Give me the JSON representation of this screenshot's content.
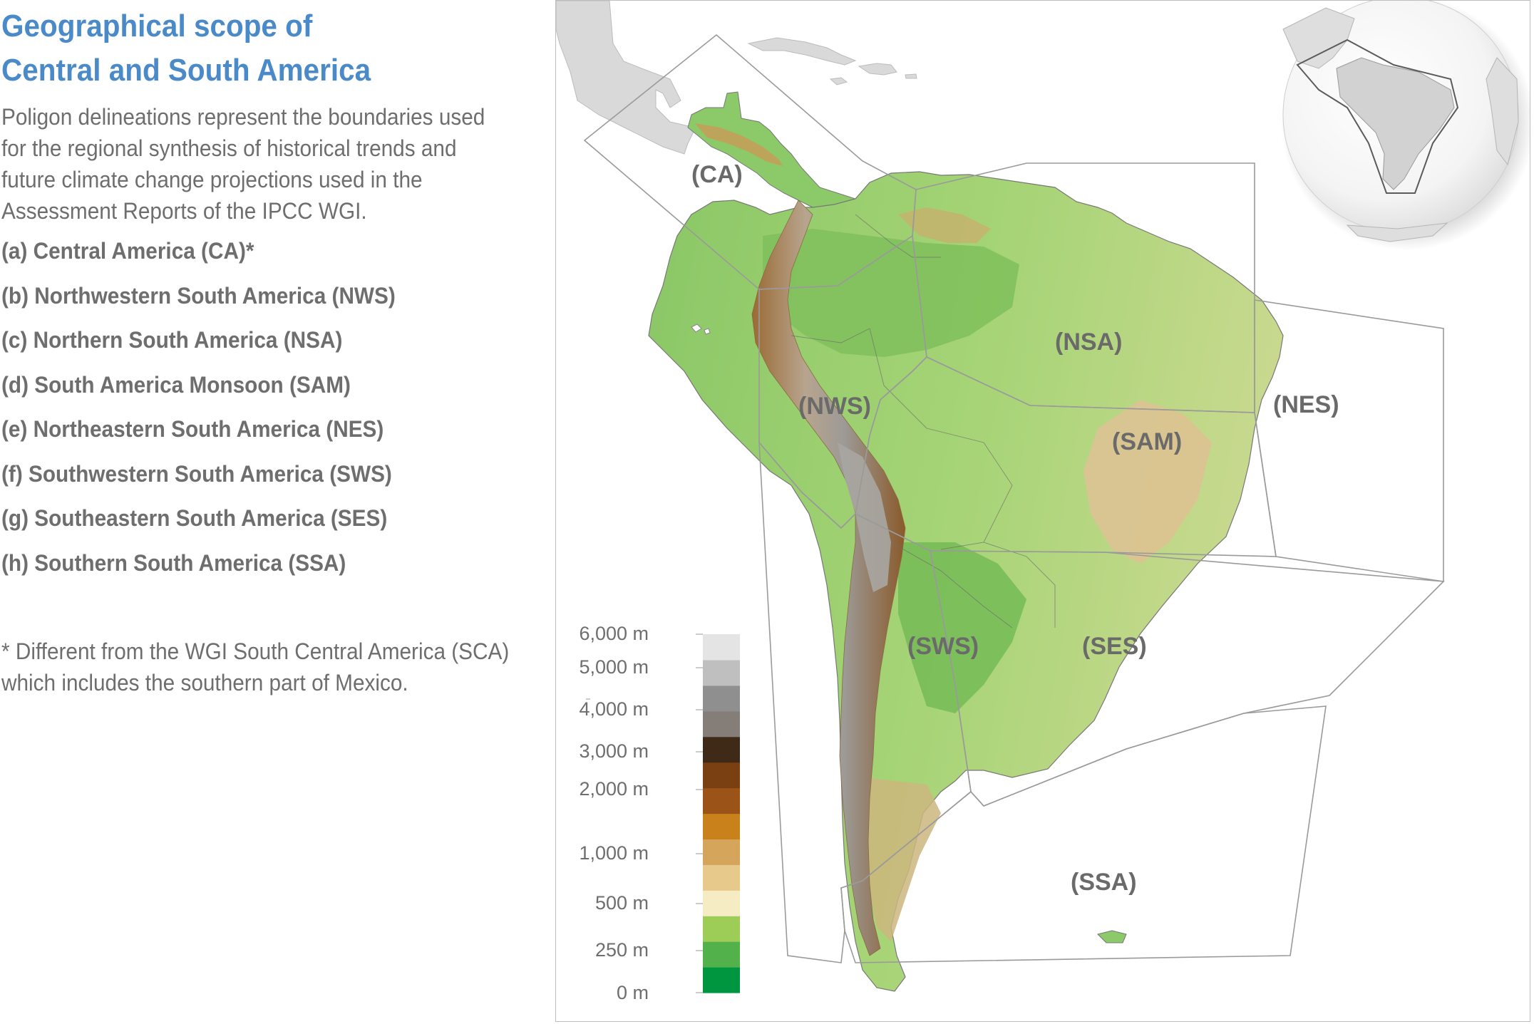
{
  "title": {
    "line1": "Geographical scope of",
    "line2": "Central and South America"
  },
  "description": {
    "line1": "Poligon delineations represent the boundaries used",
    "line2": "for the regional synthesis of historical trends and",
    "line3": "future climate change projections used in the",
    "line4": "Assessment Reports of the IPCC WGI."
  },
  "regions": [
    "(a) Central America (CA)*",
    "(b) Northwestern South America (NWS)",
    "(c) Northern South America (NSA)",
    "(d) South America Monsoon (SAM)",
    "(e) Northeastern South America (NES)",
    "(f) Southwestern South America (SWS)",
    "(g) Southeastern South America (SES)",
    "(h) Southern South America (SSA)"
  ],
  "footnote": {
    "line1": "* Different from the WGI South Central America (SCA)",
    "line2": "which includes the southern part of Mexico."
  },
  "map": {
    "region_labels": {
      "ca": "(CA)",
      "nsa": "(NSA)",
      "nws": "(NWS)",
      "nes": "(NES)",
      "sam": "(SAM)",
      "sws": "(SWS)",
      "ses": "(SES)",
      "ssa": "(SSA)"
    },
    "colors": {
      "lowland_green": "#1e9a4a",
      "plains_green": "#9fcf6a",
      "upland_tan": "#e3c58c",
      "highland_brown": "#8a5a2a",
      "peak_grey": "#a8a8a8",
      "neighbour_land": "#d9d9d9",
      "region_border": "#9a9a9a"
    }
  },
  "elevation_legend": {
    "ticks": [
      "6,000 m",
      "5,000 m",
      "4,000 m",
      "3,000 m",
      "2,000 m",
      "1,000 m",
      "500 m",
      "250 m",
      "0 m"
    ],
    "colors": [
      "#00953f",
      "#53b14b",
      "#9dcc57",
      "#f5ecc3",
      "#e7c98b",
      "#d6a55c",
      "#c9811b",
      "#9b5317",
      "#7b4012",
      "#3e2a16",
      "#857d78",
      "#8f8f8f",
      "#bfbfbf",
      "#e4e4e4"
    ]
  }
}
